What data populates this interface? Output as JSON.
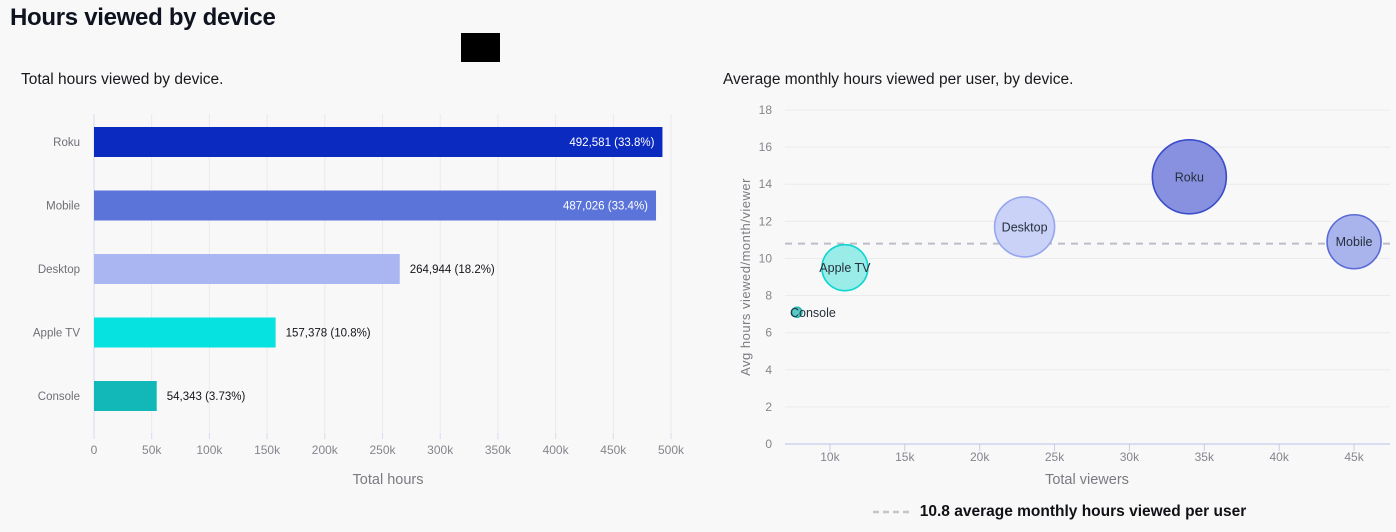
{
  "page": {
    "title": "Hours viewed by device",
    "background": "#f8f8f9"
  },
  "chart_data": [
    {
      "type": "bar",
      "orientation": "horizontal",
      "title": "Total hours viewed by device.",
      "xlabel": "Total hours",
      "xlim": [
        0,
        500000
      ],
      "x_tick_values": [
        0,
        50000,
        100000,
        150000,
        200000,
        250000,
        300000,
        350000,
        400000,
        450000,
        500000
      ],
      "x_tick_labels": [
        "0",
        "50k",
        "100k",
        "150k",
        "200k",
        "250k",
        "300k",
        "350k",
        "400k",
        "450k",
        "500k"
      ],
      "categories": [
        "Roku",
        "Mobile",
        "Desktop",
        "Apple TV",
        "Console"
      ],
      "values": [
        492581,
        487026,
        264944,
        157378,
        54343
      ],
      "value_labels": [
        "492,581 (33.8%)",
        "487,026 (33.4%)",
        "264,944 (18.2%)",
        "157,378 (10.8%)",
        "54,343 (3.73%)"
      ],
      "colors": [
        "#0b2bc0",
        "#5b74d9",
        "#aab6f2",
        "#06e2e0",
        "#12b8b8"
      ],
      "label_inside": [
        true,
        true,
        false,
        false,
        false
      ],
      "grid": true
    },
    {
      "type": "scatter",
      "title": "Average monthly hours viewed per user, by device.",
      "xlabel": "Total viewers",
      "ylabel": "Avg hours viewed/month/viewer",
      "xlim": [
        7000,
        47400
      ],
      "ylim": [
        0,
        18
      ],
      "x_tick_values": [
        10000,
        15000,
        20000,
        25000,
        30000,
        35000,
        40000,
        45000
      ],
      "x_tick_labels": [
        "10k",
        "15k",
        "20k",
        "25k",
        "30k",
        "35k",
        "40k",
        "45k"
      ],
      "y_tick_values": [
        0,
        2,
        4,
        6,
        8,
        10,
        12,
        14,
        16,
        18
      ],
      "y_tick_labels": [
        "0",
        "2",
        "4",
        "6",
        "8",
        "10",
        "12",
        "14",
        "16",
        "18"
      ],
      "grid": true,
      "reference_line": {
        "y": 10.8,
        "legend": "10.8 average monthly hours viewed per user"
      },
      "points": [
        {
          "label": "Console",
          "x": 7800,
          "y": 7.1,
          "r": 5,
          "fill": "#59c9c6",
          "stroke": "#23b7b4",
          "label_anchor": "start"
        },
        {
          "label": "Apple TV",
          "x": 11000,
          "y": 9.5,
          "r": 23,
          "fill": "#9aece8",
          "stroke": "#10d5d1",
          "label_anchor": "middle"
        },
        {
          "label": "Desktop",
          "x": 23000,
          "y": 11.7,
          "r": 30,
          "fill": "#cad2f8",
          "stroke": "#96a6ee",
          "label_anchor": "middle"
        },
        {
          "label": "Roku",
          "x": 34000,
          "y": 14.4,
          "r": 37,
          "fill": "#8791e0",
          "stroke": "#3a4cc8",
          "label_anchor": "middle"
        },
        {
          "label": "Mobile",
          "x": 45000,
          "y": 10.9,
          "r": 27,
          "fill": "#a9b3ec",
          "stroke": "#5a6bd5",
          "label_anchor": "middle"
        }
      ]
    }
  ]
}
